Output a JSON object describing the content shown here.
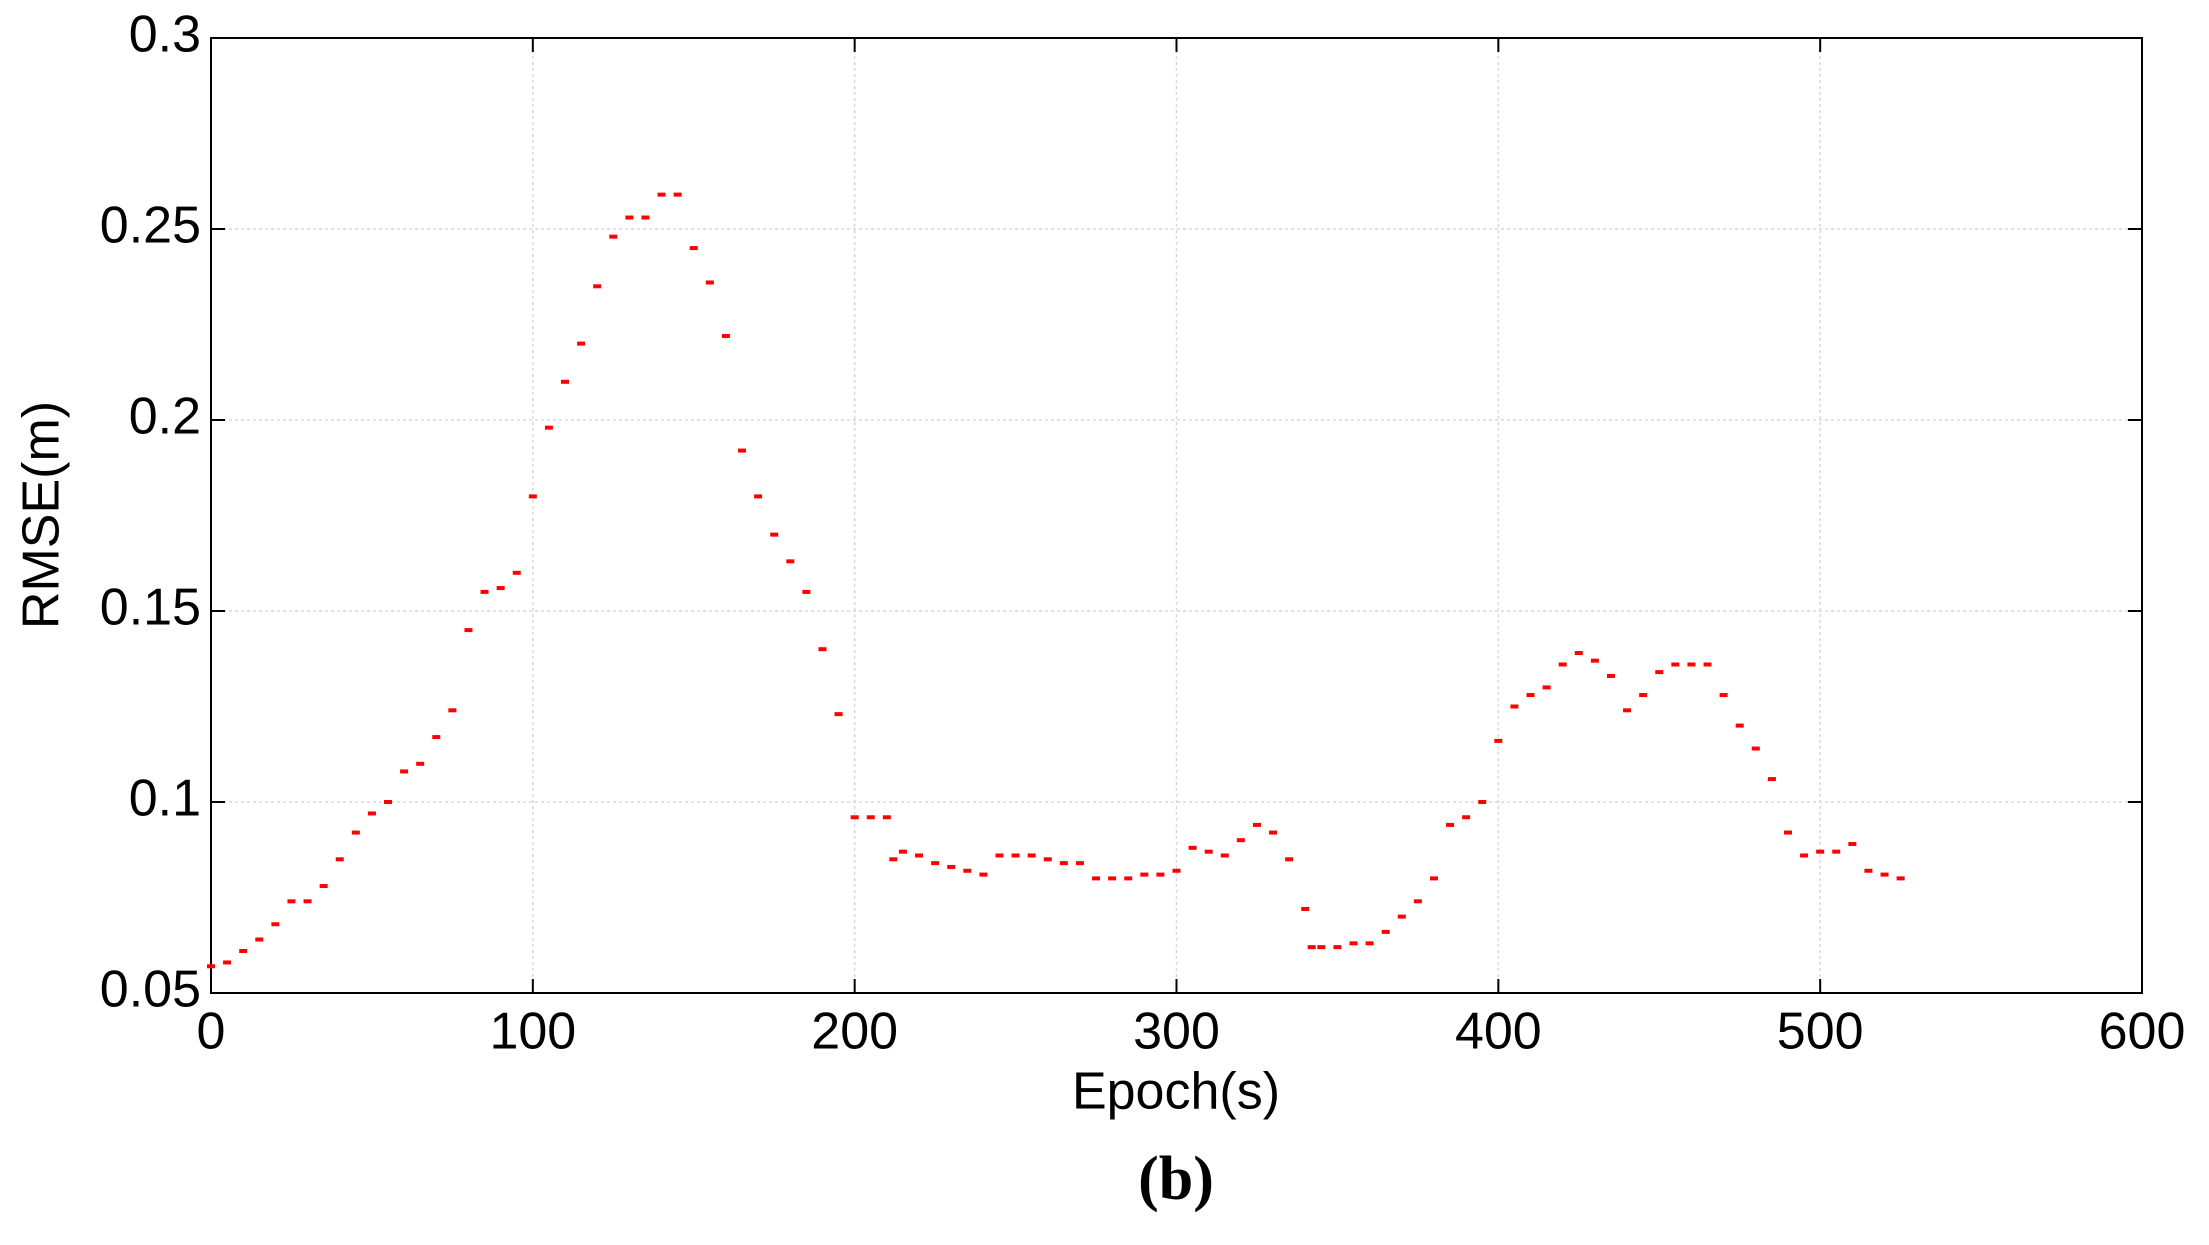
{
  "chart_data": {
    "type": "scatter",
    "caption": "(b)",
    "xlabel": "Epoch(s)",
    "ylabel": "RMSE(m)",
    "xlim": [
      0,
      600
    ],
    "xticks": [
      0,
      100,
      200,
      300,
      400,
      500,
      600
    ],
    "ylim": [
      0.05,
      0.3
    ],
    "yticks": [
      0.05,
      0.1,
      0.15,
      0.2,
      0.25,
      0.3
    ],
    "grid": true,
    "series": [
      {
        "color": "#ff0000",
        "x": [
          0,
          5,
          10,
          15,
          20,
          25,
          30,
          35,
          40,
          45,
          50,
          55,
          60,
          65,
          70,
          75,
          80,
          85,
          90,
          95,
          100,
          105,
          110,
          115,
          120,
          125,
          130,
          135,
          140,
          145,
          150,
          155,
          160,
          165,
          170,
          175,
          180,
          185,
          190,
          195,
          200,
          205,
          210,
          212,
          215,
          220,
          225,
          230,
          235,
          240,
          245,
          250,
          255,
          260,
          265,
          270,
          275,
          280,
          285,
          290,
          295,
          300,
          305,
          310,
          315,
          320,
          325,
          330,
          335,
          340,
          342,
          345,
          350,
          355,
          360,
          365,
          370,
          375,
          380,
          385,
          390,
          395,
          400,
          405,
          410,
          415,
          420,
          425,
          430,
          435,
          440,
          445,
          450,
          455,
          460,
          465,
          470,
          475,
          480,
          485,
          490,
          495,
          500,
          505,
          510,
          515,
          520,
          525
        ],
        "values": [
          0.057,
          0.058,
          0.061,
          0.064,
          0.068,
          0.074,
          0.074,
          0.078,
          0.085,
          0.092,
          0.097,
          0.1,
          0.108,
          0.11,
          0.117,
          0.124,
          0.145,
          0.155,
          0.156,
          0.16,
          0.18,
          0.198,
          0.21,
          0.22,
          0.235,
          0.248,
          0.253,
          0.253,
          0.259,
          0.259,
          0.245,
          0.236,
          0.222,
          0.192,
          0.18,
          0.17,
          0.163,
          0.155,
          0.14,
          0.123,
          0.096,
          0.096,
          0.096,
          0.085,
          0.087,
          0.086,
          0.084,
          0.083,
          0.082,
          0.081,
          0.086,
          0.086,
          0.086,
          0.085,
          0.084,
          0.084,
          0.08,
          0.08,
          0.08,
          0.081,
          0.081,
          0.082,
          0.088,
          0.087,
          0.086,
          0.09,
          0.094,
          0.092,
          0.085,
          0.072,
          0.062,
          0.062,
          0.062,
          0.063,
          0.063,
          0.066,
          0.07,
          0.074,
          0.08,
          0.094,
          0.096,
          0.1,
          0.116,
          0.125,
          0.128,
          0.13,
          0.136,
          0.139,
          0.137,
          0.133,
          0.124,
          0.128,
          0.134,
          0.136,
          0.136,
          0.136,
          0.128,
          0.12,
          0.114,
          0.106,
          0.092,
          0.086,
          0.087,
          0.087,
          0.089,
          0.082,
          0.081,
          0.08
        ]
      }
    ]
  }
}
